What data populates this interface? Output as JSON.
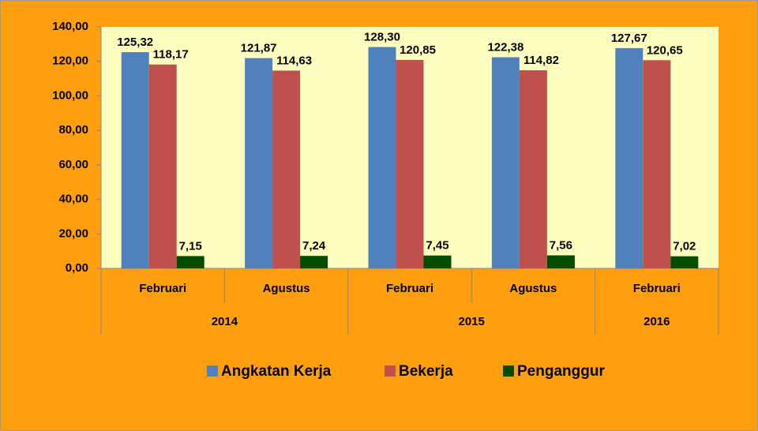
{
  "chart_data": {
    "type": "bar",
    "categories": [
      "Februari",
      "Agustus",
      "Februari",
      "Agustus",
      "Februari"
    ],
    "x_groups": [
      "2014",
      null,
      "2015",
      null,
      "2016"
    ],
    "series": [
      {
        "name": "Angkatan Kerja",
        "color": "#4f81bd",
        "values": [
          125.32,
          121.87,
          128.3,
          122.38,
          127.67
        ],
        "value_labels": [
          "125,32",
          "121,87",
          "128,30",
          "122,38",
          "127,67"
        ]
      },
      {
        "name": "Bekerja",
        "color": "#c0504d",
        "values": [
          118.17,
          114.63,
          120.85,
          114.82,
          120.65
        ],
        "value_labels": [
          "118,17",
          "114,63",
          "120,85",
          "114,82",
          "120,65"
        ]
      },
      {
        "name": "Penganggur",
        "color": "#004d00",
        "values": [
          7.15,
          7.24,
          7.45,
          7.56,
          7.02
        ],
        "value_labels": [
          "7,15",
          "7,24",
          "7,45",
          "7,56",
          "7,02"
        ]
      }
    ],
    "ylim": [
      0,
      140
    ],
    "yticks": [
      {
        "value": 0,
        "label": "0,00"
      },
      {
        "value": 20,
        "label": "20,00"
      },
      {
        "value": 40,
        "label": "40,00"
      },
      {
        "value": 60,
        "label": "60,00"
      },
      {
        "value": 80,
        "label": "80,00"
      },
      {
        "value": 100,
        "label": "100,00"
      },
      {
        "value": 120,
        "label": "120,00"
      },
      {
        "value": 140,
        "label": "140,00"
      }
    ],
    "legend": "bottom"
  }
}
